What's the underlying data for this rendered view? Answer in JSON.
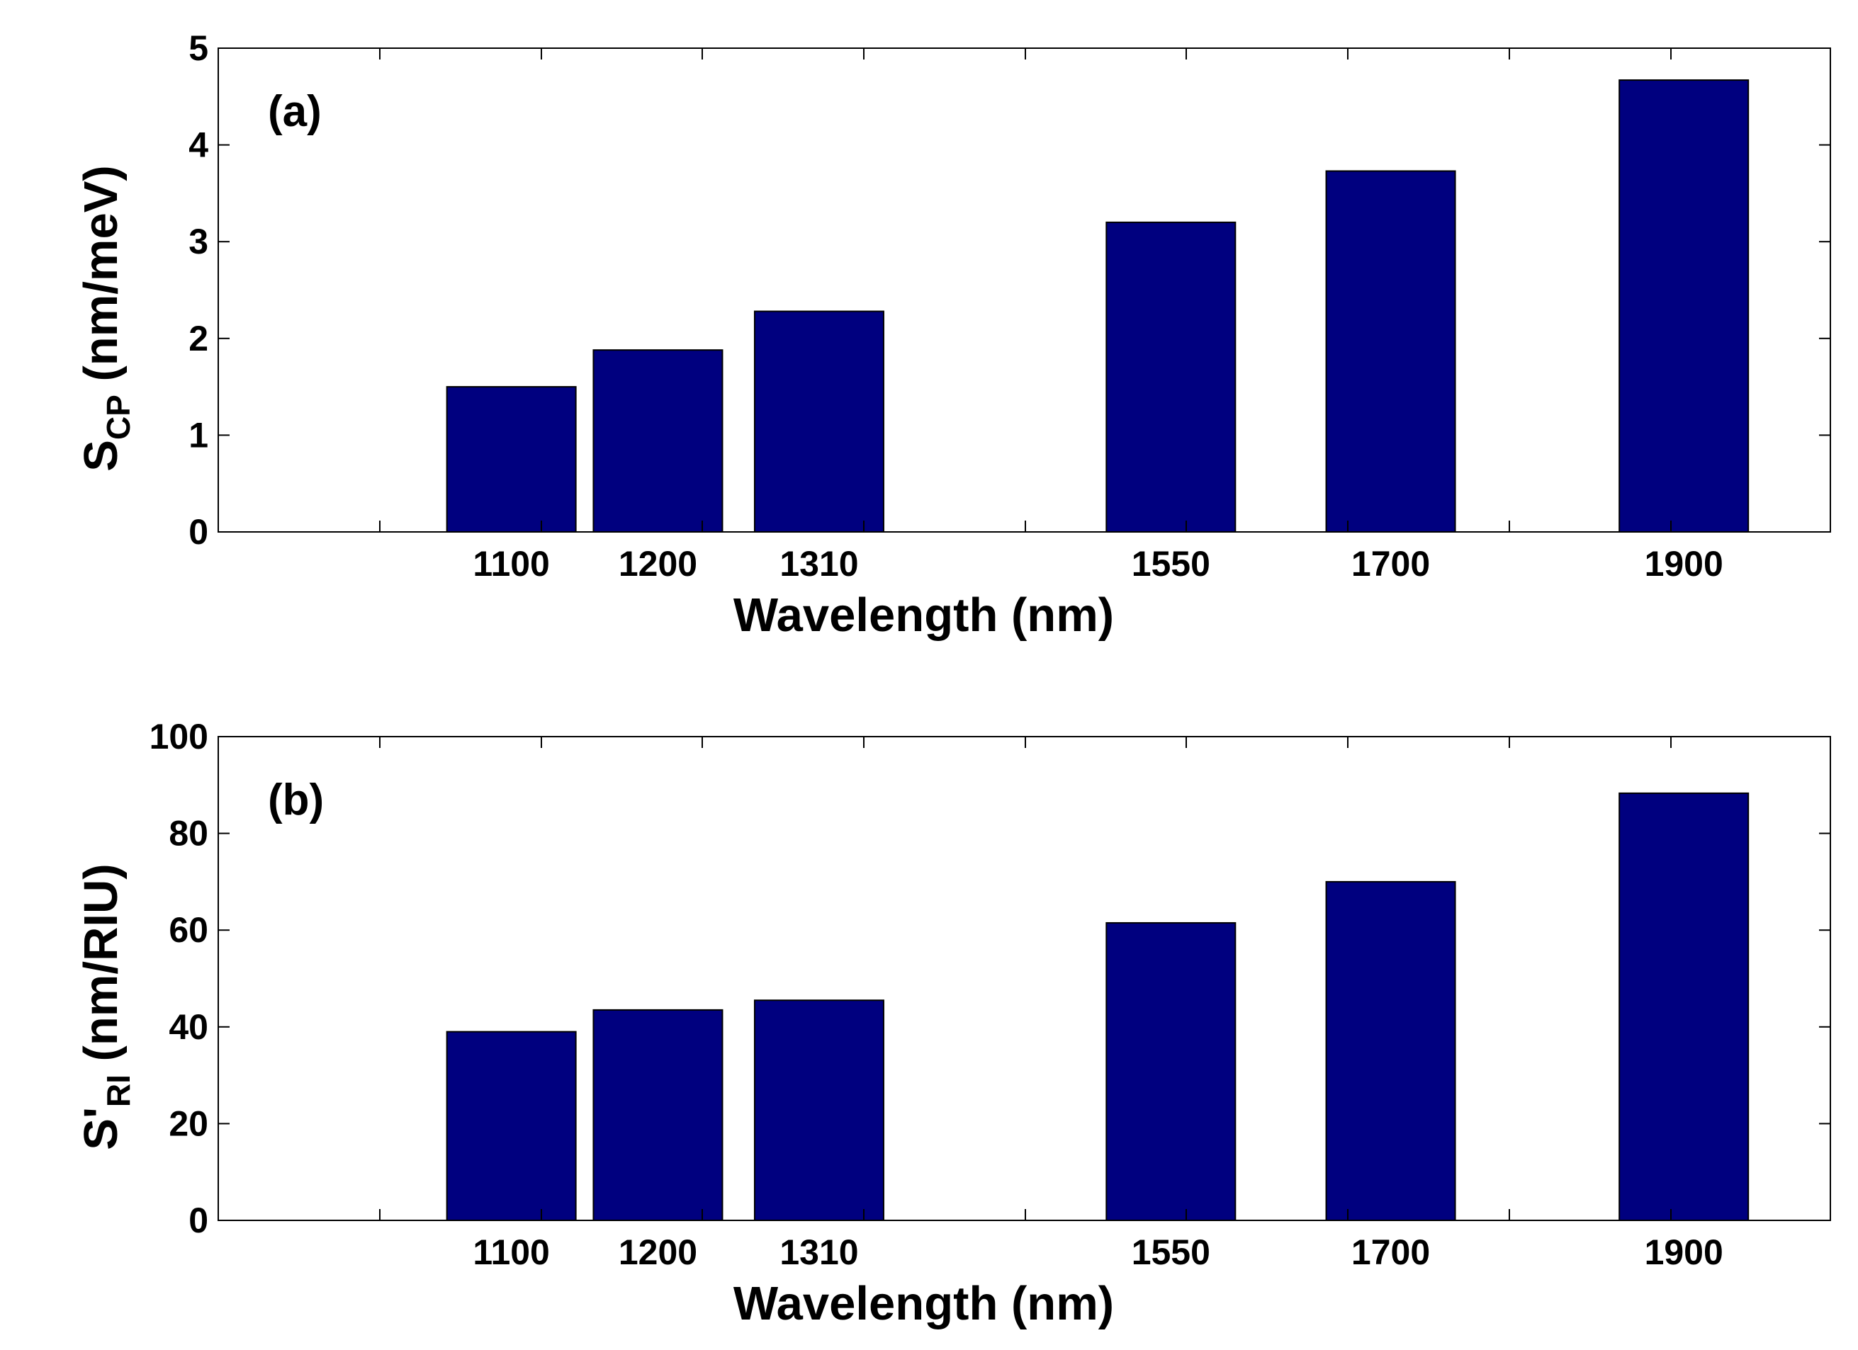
{
  "chart_data": [
    {
      "type": "bar",
      "panel_label": "(a)",
      "categories": [
        "1100",
        "1200",
        "1310",
        "1550",
        "1700",
        "1900"
      ],
      "x": [
        1100,
        1200,
        1310,
        1550,
        1700,
        1900
      ],
      "values": [
        1.5,
        1.88,
        2.28,
        3.2,
        3.73,
        4.67
      ],
      "xlim": [
        900,
        2000
      ],
      "ylim": [
        0,
        5
      ],
      "yticks": [
        "0",
        "1",
        "2",
        "3",
        "4",
        "5"
      ],
      "xlabel": "Wavelength (nm)",
      "ylabel_main": "S",
      "ylabel_sub": "CP",
      "ylabel_tail": " (nm/meV)",
      "grid": false,
      "bar_color": "#00007f"
    },
    {
      "type": "bar",
      "panel_label": "(b)",
      "categories": [
        "1100",
        "1200",
        "1310",
        "1550",
        "1700",
        "1900"
      ],
      "x": [
        1100,
        1200,
        1310,
        1550,
        1700,
        1900
      ],
      "values": [
        39,
        43.5,
        45.5,
        61.5,
        70,
        88.3
      ],
      "xlim": [
        900,
        2000
      ],
      "ylim": [
        0,
        100
      ],
      "yticks": [
        "0",
        "20",
        "40",
        "60",
        "80",
        "100"
      ],
      "xlabel": "Wavelength (nm)",
      "ylabel_main": "S'",
      "ylabel_sub": "RI",
      "ylabel_tail": " (nm/RIU)",
      "grid": false,
      "bar_color": "#00007f"
    }
  ]
}
